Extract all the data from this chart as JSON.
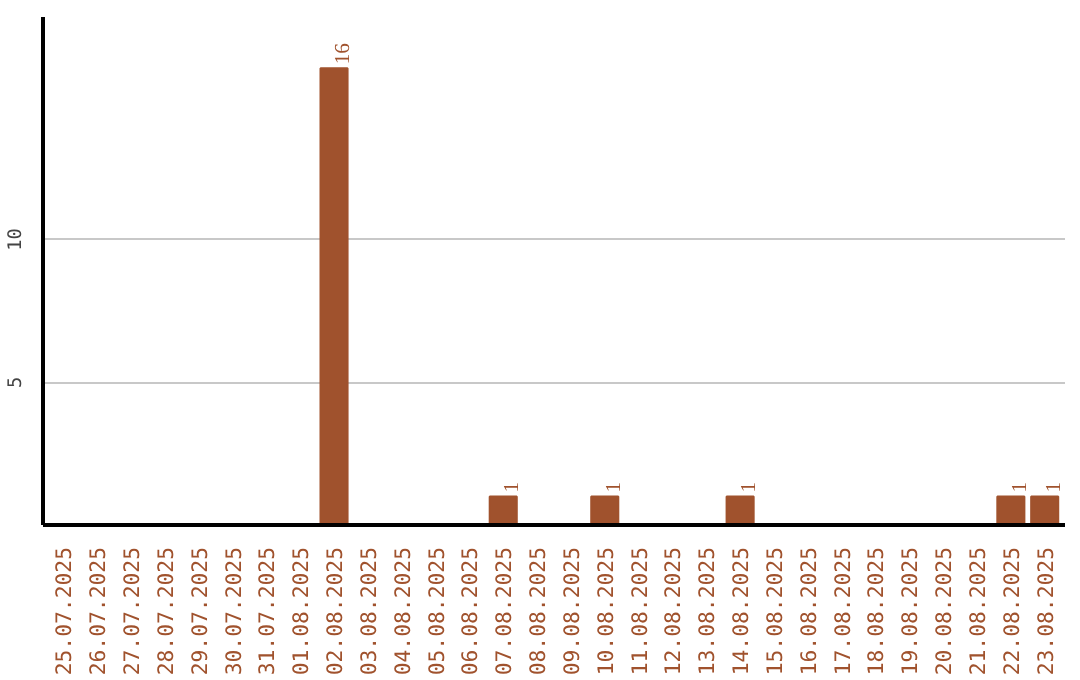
{
  "chart_data": {
    "type": "bar",
    "categories": [
      "25.07.2025",
      "26.07.2025",
      "27.07.2025",
      "28.07.2025",
      "29.07.2025",
      "30.07.2025",
      "31.07.2025",
      "01.08.2025",
      "02.08.2025",
      "03.08.2025",
      "04.08.2025",
      "05.08.2025",
      "06.08.2025",
      "07.08.2025",
      "08.08.2025",
      "09.08.2025",
      "10.08.2025",
      "11.08.2025",
      "12.08.2025",
      "13.08.2025",
      "14.08.2025",
      "15.08.2025",
      "16.08.2025",
      "17.08.2025",
      "18.08.2025",
      "19.08.2025",
      "20.08.2025",
      "21.08.2025",
      "22.08.2025",
      "23.08.2025"
    ],
    "values": [
      0,
      0,
      0,
      0,
      0,
      0,
      0,
      0,
      16,
      0,
      0,
      0,
      0,
      1,
      0,
      0,
      1,
      0,
      0,
      0,
      1,
      0,
      0,
      0,
      0,
      0,
      0,
      0,
      1,
      1
    ],
    "value_labels": [
      null,
      null,
      null,
      null,
      null,
      null,
      null,
      null,
      "16",
      null,
      null,
      null,
      null,
      "1",
      null,
      null,
      "1",
      null,
      null,
      null,
      "1",
      null,
      null,
      null,
      null,
      null,
      null,
      null,
      "1",
      "1"
    ],
    "color": "#a0522d",
    "ylim": [
      0,
      17.8
    ],
    "yticks": [
      5,
      10
    ],
    "grid": "y"
  }
}
